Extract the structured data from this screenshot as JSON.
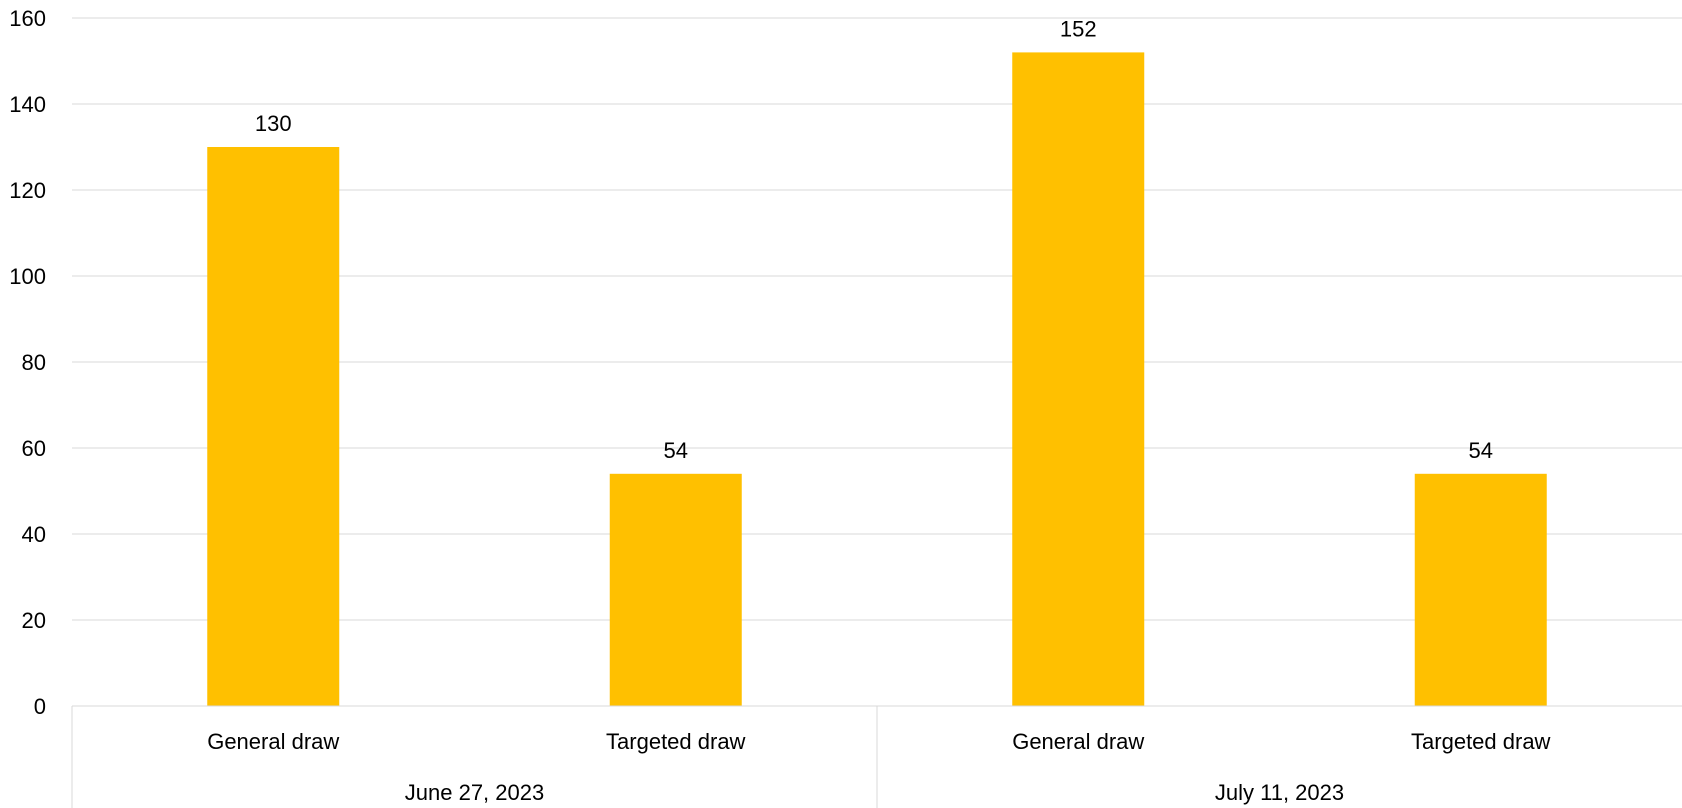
{
  "chart_data": {
    "type": "bar",
    "groups": [
      {
        "label": "June 27, 2023",
        "categories": [
          "General draw",
          "Targeted draw"
        ],
        "values": [
          130,
          54
        ]
      },
      {
        "label": "July 11, 2023",
        "categories": [
          "General draw",
          "Targeted draw"
        ],
        "values": [
          152,
          54
        ]
      }
    ],
    "ylim": [
      0,
      160
    ],
    "yticks": [
      0,
      20,
      40,
      60,
      80,
      100,
      120,
      140,
      160
    ],
    "data_labels": true,
    "grid": true,
    "legend": "none",
    "bar_color": "#FFC000",
    "title": "",
    "xlabel": "",
    "ylabel": ""
  }
}
